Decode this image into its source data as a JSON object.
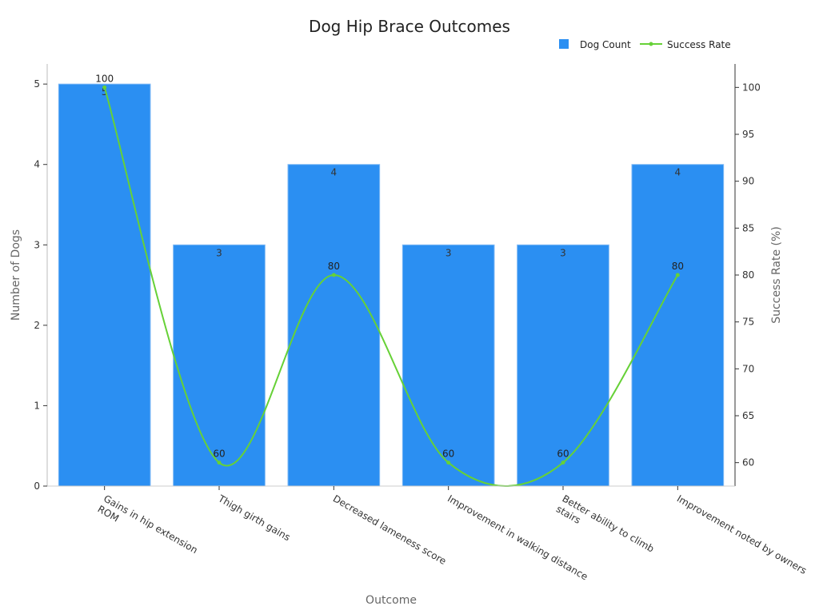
{
  "chart_data": {
    "type": "bar",
    "title": "Dog Hip Brace Outcomes",
    "xlabel": "Outcome",
    "ylabel": "Number of Dogs",
    "y2label": "Success Rate (%)",
    "categories": [
      "Gains in hip extension ROM",
      "Thigh girth gains",
      "Decreased lameness score",
      "Improvement in walking distance",
      "Better ability to climb stairs",
      "Improvement noted by owners"
    ],
    "category_label_lines": [
      [
        "Gains in hip extension",
        "ROM"
      ],
      [
        "Thigh girth gains"
      ],
      [
        "Decreased lameness score"
      ],
      [
        "Improvement in walking distance"
      ],
      [
        "Better ability to climb",
        "stairs"
      ],
      [
        "Improvement noted by owners"
      ]
    ],
    "series": [
      {
        "name": "Dog Count",
        "type": "bar",
        "axis": "left",
        "color": "#2B8FF2",
        "values": [
          5,
          3,
          4,
          3,
          3,
          4
        ],
        "labels": [
          "5",
          "3",
          "4",
          "3",
          "3",
          "4"
        ]
      },
      {
        "name": "Success Rate",
        "type": "line",
        "axis": "right",
        "color": "#66D137",
        "values": [
          100,
          60,
          80,
          60,
          60,
          80
        ],
        "labels": [
          "100",
          "60",
          "80",
          "60",
          "60",
          "80"
        ]
      }
    ],
    "ylim": [
      0,
      5.25
    ],
    "y_ticks": [
      0,
      1,
      2,
      3,
      4,
      5
    ],
    "y_tick_labels": [
      "0",
      "1",
      "2",
      "3",
      "4",
      "5"
    ],
    "y2lim": [
      57.5,
      102.5
    ],
    "y2_ticks": [
      60,
      65,
      70,
      75,
      80,
      85,
      90,
      95,
      100
    ],
    "y2_tick_labels": [
      "60",
      "65",
      "70",
      "75",
      "80",
      "85",
      "90",
      "95",
      "100"
    ],
    "grid": false,
    "legend_position": "top-right"
  }
}
